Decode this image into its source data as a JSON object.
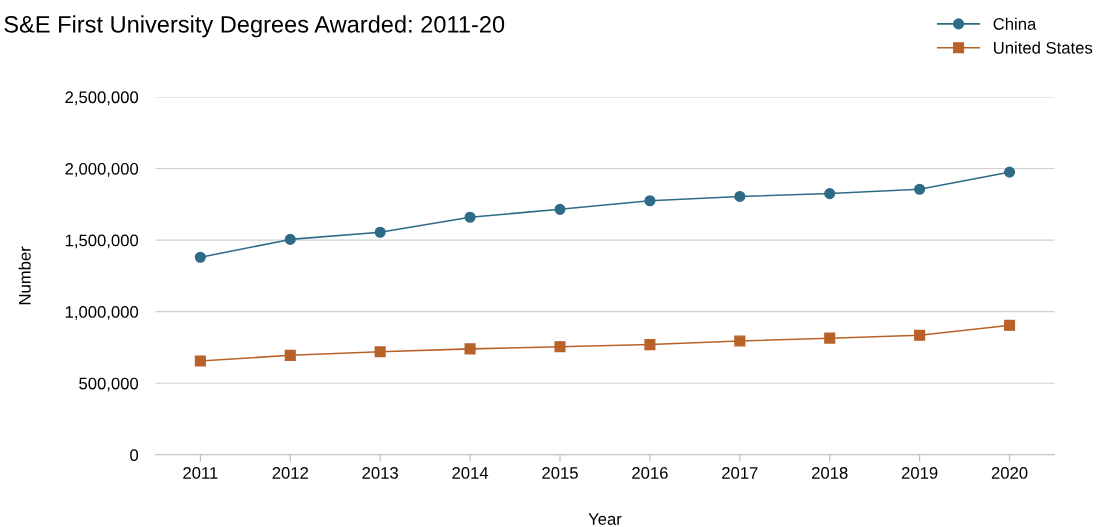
{
  "chart_data": {
    "type": "line",
    "title": "S&E First University Degrees Awarded: 2011-20",
    "xlabel": "Year",
    "ylabel": "Number",
    "categories": [
      "2011",
      "2012",
      "2013",
      "2014",
      "2015",
      "2016",
      "2017",
      "2018",
      "2019",
      "2020"
    ],
    "series": [
      {
        "name": "China",
        "color": "#2e6b87",
        "marker": "circle",
        "values": [
          1380000,
          1505000,
          1555000,
          1660000,
          1715000,
          1775000,
          1805000,
          1825000,
          1855000,
          1975000
        ]
      },
      {
        "name": "United States",
        "color": "#b8622a",
        "marker": "square",
        "values": [
          655000,
          695000,
          720000,
          740000,
          755000,
          770000,
          795000,
          815000,
          835000,
          905000
        ]
      }
    ],
    "ylim": [
      0,
      2500000
    ],
    "yticks": [
      {
        "value": 0,
        "label": "0"
      },
      {
        "value": 500000,
        "label": "500,000"
      },
      {
        "value": 1000000,
        "label": "1,000,000"
      },
      {
        "value": 1500000,
        "label": "1,500,000"
      },
      {
        "value": 2000000,
        "label": "2,000,000"
      },
      {
        "value": 2500000,
        "label": "2,500,000"
      }
    ],
    "grid": "y",
    "legend": "top right",
    "line_style": "solid"
  }
}
